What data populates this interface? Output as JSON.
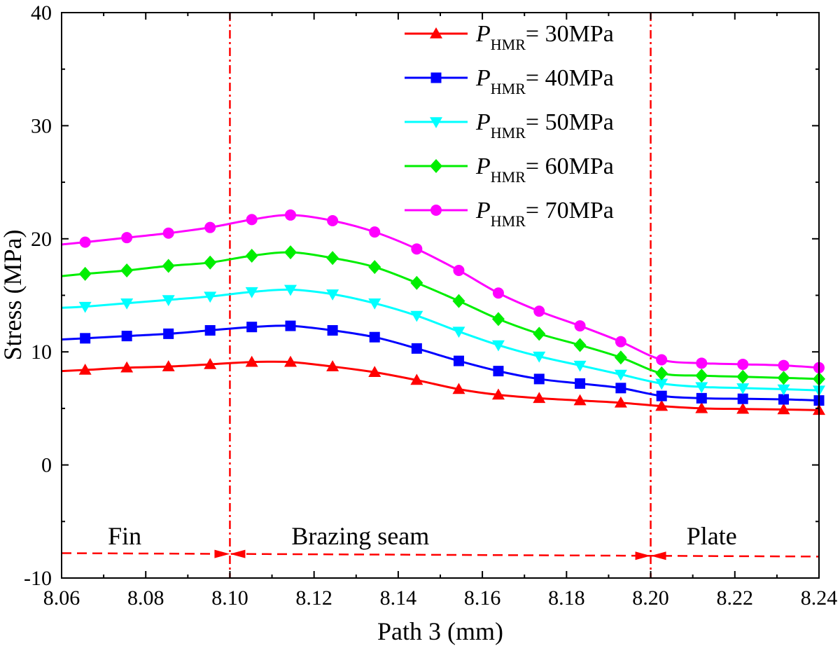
{
  "chart_data": {
    "type": "line",
    "xlabel": "Path 3 (mm)",
    "ylabel": "Stress (MPa)",
    "xlim": [
      8.06,
      8.24
    ],
    "ylim": [
      -10,
      40
    ],
    "x_ticks": [
      "8.06",
      "8.08",
      "8.10",
      "8.12",
      "8.14",
      "8.16",
      "8.18",
      "8.20",
      "8.22",
      "8.24"
    ],
    "y_ticks": [
      "-10",
      "0",
      "10",
      "20",
      "30",
      "40"
    ],
    "x": [
      8.06,
      8.0656,
      8.0755,
      8.0854,
      8.0953,
      8.1052,
      8.1144,
      8.1244,
      8.1344,
      8.1444,
      8.1544,
      8.1638,
      8.1735,
      8.1832,
      8.1929,
      8.2026,
      8.2121,
      8.2219,
      8.2316,
      8.24
    ],
    "markers_shown_from_index": 1,
    "series": [
      {
        "name_main": "P",
        "name_sub": "HMR",
        "name_tail": "= 30MPa",
        "color": "#ff0000",
        "marker": "triangle-up",
        "values": [
          8.3,
          8.4,
          8.6,
          8.7,
          8.9,
          9.1,
          9.1,
          8.7,
          8.2,
          7.5,
          6.7,
          6.2,
          5.9,
          5.7,
          5.5,
          5.2,
          5.0,
          4.95,
          4.9,
          4.85
        ]
      },
      {
        "name_main": "P",
        "name_sub": "HMR",
        "name_tail": "= 40MPa",
        "color": "#0000ff",
        "marker": "square",
        "values": [
          11.1,
          11.2,
          11.4,
          11.6,
          11.9,
          12.2,
          12.3,
          11.9,
          11.3,
          10.3,
          9.2,
          8.3,
          7.6,
          7.2,
          6.8,
          6.1,
          5.9,
          5.85,
          5.8,
          5.7
        ]
      },
      {
        "name_main": "P",
        "name_sub": "HMR",
        "name_tail": "= 50MPa",
        "color": "#00ffff",
        "marker": "triangle-down",
        "values": [
          13.9,
          14.0,
          14.3,
          14.6,
          14.9,
          15.3,
          15.5,
          15.1,
          14.3,
          13.2,
          11.8,
          10.6,
          9.6,
          8.8,
          8.0,
          7.2,
          6.9,
          6.8,
          6.7,
          6.6
        ]
      },
      {
        "name_main": "P",
        "name_sub": "HMR",
        "name_tail": "= 60MPa",
        "color": "#00ee00",
        "marker": "diamond",
        "values": [
          16.7,
          16.9,
          17.2,
          17.6,
          17.9,
          18.5,
          18.8,
          18.3,
          17.5,
          16.1,
          14.5,
          12.9,
          11.6,
          10.6,
          9.5,
          8.1,
          7.9,
          7.8,
          7.7,
          7.6
        ]
      },
      {
        "name_main": "P",
        "name_sub": "HMR",
        "name_tail": "= 70MPa",
        "color": "#ff00ff",
        "marker": "circle",
        "values": [
          19.5,
          19.7,
          20.1,
          20.5,
          21.0,
          21.7,
          22.1,
          21.6,
          20.6,
          19.1,
          17.2,
          15.2,
          13.6,
          12.3,
          10.9,
          9.3,
          9.0,
          8.9,
          8.8,
          8.6
        ]
      }
    ],
    "region_boundaries": [
      8.1,
      8.2
    ],
    "regions": [
      {
        "label": "Fin",
        "x_center": 8.075
      },
      {
        "label": "Brazing seam",
        "x_center": 8.131
      },
      {
        "label": "Plate",
        "x_center": 8.2145
      }
    ],
    "dimension_line": {
      "x_start": 8.06,
      "x_end": 8.24,
      "y_start": -7.8,
      "y_end": -8.1,
      "arrows_at": [
        8.1,
        8.2
      ]
    },
    "legend_position": "top-right",
    "grid": false
  }
}
